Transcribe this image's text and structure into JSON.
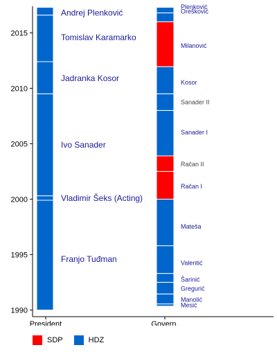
{
  "chart_data": {
    "type": "timeline",
    "y_axis": {
      "ticks": [
        "1990",
        "1995",
        "2000",
        "2005",
        "2010",
        "2015"
      ],
      "range": [
        1989.4,
        2017.4
      ]
    },
    "columns": [
      "President",
      "Govern."
    ],
    "legend": [
      {
        "label": "SDP",
        "color": "#ff0000"
      },
      {
        "label": "HDZ",
        "color": "#0066cc"
      }
    ],
    "president_column": [
      {
        "name": "Franjo Tuđman",
        "party": "HDZ",
        "start": 1990.0,
        "end": 1999.9,
        "label_at": 1994.6
      },
      {
        "name": "Vladimir Šeks (Acting)",
        "party": "HDZ",
        "start": 1999.9,
        "end": 2000.3,
        "label_at": 2000.1
      },
      {
        "name": "Ivo Sanader",
        "party": "HDZ",
        "start": 2000.3,
        "end": 2009.5,
        "label_at": 2004.9
      },
      {
        "name": "Jadranka Kosor",
        "party": "HDZ",
        "start": 2009.5,
        "end": 2012.4,
        "label_at": 2010.9
      },
      {
        "name": "Tomislav Karamarko",
        "party": "HDZ",
        "start": 2012.4,
        "end": 2016.6,
        "label_at": 2014.6
      },
      {
        "name": "Andrej Plenković",
        "party": "HDZ",
        "start": 2016.6,
        "end": 2017.3,
        "label_at": 2016.8
      }
    ],
    "government_column": [
      {
        "name": "Mesić",
        "party": "HDZ",
        "start": 1990.35,
        "end": 1990.55,
        "label_at": 1990.5
      },
      {
        "name": "Manolić",
        "party": "HDZ",
        "start": 1990.55,
        "end": 1991.45,
        "label_at": 1991.0
      },
      {
        "name": "Gregurić",
        "party": "HDZ",
        "start": 1991.45,
        "end": 1992.5,
        "label_at": 1992.0
      },
      {
        "name": "Šarinić",
        "party": "HDZ",
        "start": 1992.5,
        "end": 1993.3,
        "label_at": 1992.8
      },
      {
        "name": "Valentić",
        "party": "HDZ",
        "start": 1993.3,
        "end": 1995.8,
        "label_at": 1994.3
      },
      {
        "name": "Mateša",
        "party": "HDZ",
        "start": 1995.8,
        "end": 2000.0,
        "label_at": 1997.6
      },
      {
        "name": "Račan I",
        "party": "SDP",
        "start": 2000.0,
        "end": 2002.5,
        "label_at": 2001.2
      },
      {
        "name": "Račan II",
        "party": "SDP",
        "start": 2002.5,
        "end": 2003.9,
        "label_at": 2003.2
      },
      {
        "name": "Sanader I",
        "party": "HDZ",
        "start": 2003.9,
        "end": 2008.0,
        "label_at": 2006.1
      },
      {
        "name": "Sanader II",
        "party": "HDZ",
        "start": 2008.0,
        "end": 2009.5,
        "label_at": 2008.8
      },
      {
        "name": "Kosor",
        "party": "HDZ",
        "start": 2009.5,
        "end": 2011.95,
        "label_at": 2010.6
      },
      {
        "name": "Milanović",
        "party": "SDP",
        "start": 2011.95,
        "end": 2016.0,
        "label_at": 2013.9
      },
      {
        "name": "Orešković",
        "party": "HDZ",
        "start": 2016.0,
        "end": 2016.8,
        "label_at": 2017.0
      },
      {
        "name": "Plenković",
        "party": "HDZ",
        "start": 2016.8,
        "end": 2017.3,
        "label_at": 2017.4
      }
    ]
  }
}
